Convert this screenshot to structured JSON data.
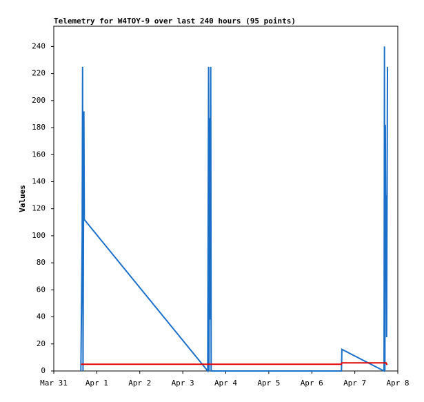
{
  "chart_data": {
    "type": "line",
    "title": "Telemetry for W4TOY-9 over last 240 hours (95 points)",
    "y_label": "Values",
    "x": [
      0.63,
      0.66,
      0.67,
      0.68,
      0.7,
      0.71,
      3.58,
      3.6,
      3.61,
      3.62,
      3.63,
      3.65,
      3.66,
      6.69,
      6.7,
      7.68,
      7.69,
      7.7,
      7.71,
      7.72,
      7.73,
      7.74,
      7.76
    ],
    "series": [
      {
        "color": "#1a6fc8",
        "values": [
          0,
          97,
          225,
          0,
          192,
          112,
          0,
          225,
          0,
          187,
          38,
          225,
          0,
          0,
          16,
          0,
          240,
          0,
          182,
          78,
          130,
          25,
          225
        ]
      },
      {
        "color": "#e00000",
        "values": [
          5,
          5,
          5,
          5,
          5,
          5,
          5,
          5,
          5,
          5,
          5,
          5,
          5,
          5,
          6,
          6,
          6,
          6,
          6,
          6,
          6,
          5,
          5
        ]
      }
    ],
    "xlim": [
      0,
      8
    ],
    "xticks": [
      {
        "value": 0,
        "label": "Mar 31"
      },
      {
        "value": 1,
        "label": "Apr 1"
      },
      {
        "value": 2,
        "label": "Apr 2"
      },
      {
        "value": 3,
        "label": "Apr 3"
      },
      {
        "value": 4,
        "label": "Apr 4"
      },
      {
        "value": 5,
        "label": "Apr 5"
      },
      {
        "value": 6,
        "label": "Apr 6"
      },
      {
        "value": 7,
        "label": "Apr 7"
      },
      {
        "value": 8,
        "label": "Apr 8"
      }
    ],
    "ylim": [
      0,
      255
    ],
    "yticks": [
      0,
      20,
      40,
      60,
      80,
      100,
      120,
      140,
      160,
      180,
      200,
      220,
      240
    ],
    "grid": false
  }
}
